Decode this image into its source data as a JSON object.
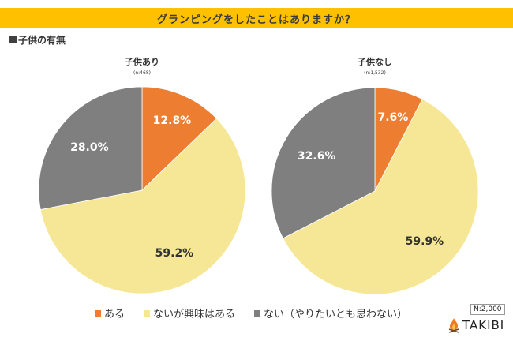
{
  "header": {
    "title": "グランピングをしたことはありますか？"
  },
  "section_label": "子供の有無",
  "chart_data": {
    "type": "pie",
    "title": "グランピングをしたことはありますか？",
    "legend": {
      "position": "bottom",
      "entries": [
        {
          "label": "ある",
          "color": "#ED7D31"
        },
        {
          "label": "ないが興味はある",
          "color": "#F5E796"
        },
        {
          "label": "ない（やりたいとも思わない）",
          "color": "#7F7F7F"
        }
      ]
    },
    "pies": [
      {
        "title": "子供あり",
        "n_label": "(n:468)",
        "slices": [
          {
            "label": "ある",
            "value": 12.8,
            "text": "12.8%",
            "color": "#ED7D31",
            "text_color": "#ffffff"
          },
          {
            "label": "ないが興味はある",
            "value": 59.2,
            "text": "59.2%",
            "color": "#F5E796",
            "text_color": "#333333"
          },
          {
            "label": "ない（やりたいとも思わない）",
            "value": 28.0,
            "text": "28.0%",
            "color": "#7F7F7F",
            "text_color": "#ffffff"
          }
        ]
      },
      {
        "title": "子供なし",
        "n_label": "(n:1,532)",
        "slices": [
          {
            "label": "ある",
            "value": 7.6,
            "text": "7.6%",
            "color": "#ED7D31",
            "text_color": "#ffffff"
          },
          {
            "label": "ないが興味はある",
            "value": 59.9,
            "text": "59.9%",
            "color": "#F5E796",
            "text_color": "#333333"
          },
          {
            "label": "ない（やりたいとも思わない）",
            "value": 32.6,
            "text": "32.6%",
            "color": "#7F7F7F",
            "text_color": "#ffffff"
          }
        ]
      }
    ]
  },
  "footer": {
    "sample_size": "N:2,000",
    "brand": "TAKIBI"
  }
}
